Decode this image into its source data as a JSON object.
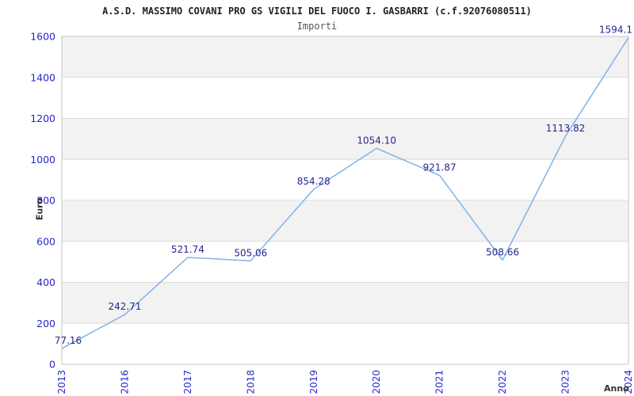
{
  "header": {
    "title": "A.S.D. MASSIMO COVANI PRO GS VIGILI DEL FUOCO I. GASBARRI (c.f.92076080511)",
    "subtitle": "Importi"
  },
  "chart_data": {
    "type": "line",
    "title": "A.S.D. MASSIMO COVANI PRO GS VIGILI DEL FUOCO I. GASBARRI (c.f.92076080511)",
    "subtitle": "Importi",
    "xlabel": "Anno",
    "ylabel": "Euro",
    "categories": [
      "2013",
      "2016",
      "2017",
      "2018",
      "2019",
      "2020",
      "2021",
      "2022",
      "2023",
      "2024"
    ],
    "values": [
      77.16,
      242.71,
      521.74,
      505.06,
      854.28,
      1054.1,
      921.87,
      508.66,
      1113.82,
      1594.1
    ],
    "point_labels": [
      "77.16",
      "242.71",
      "521.74",
      "505.06",
      "854.28",
      "1054.10",
      "921.87",
      "508.66",
      "1113.82",
      "1594.1"
    ],
    "ylim": [
      0,
      1600
    ],
    "ytick_step": 200,
    "ytick_labels": [
      "0",
      "200",
      "400",
      "600",
      "800",
      "1000",
      "1200",
      "1400",
      "1600"
    ],
    "grid": true,
    "legend_position": "none",
    "colors": {
      "line": "#7fb2e8",
      "tick_label": "#2727cc",
      "data_label": "#26268f",
      "band_gray": "#f2f2f2",
      "band_white": "#ffffff",
      "grid_line": "#dcdcdc",
      "plot_border": "#c4c4c4",
      "title": "#222222",
      "subtitle": "#555555",
      "axis_title": "#333333"
    }
  }
}
